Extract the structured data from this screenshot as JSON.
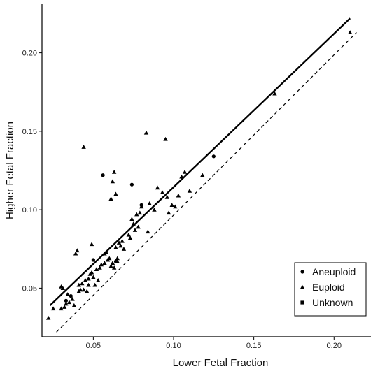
{
  "chart_data": {
    "type": "scatter",
    "xlabel": "Lower Fetal Fraction",
    "ylabel": "Higher Fetal Fraction",
    "xlim": [
      0.018,
      0.223
    ],
    "ylim": [
      0.019,
      0.231
    ],
    "xticks": [
      0.05,
      0.1,
      0.15,
      0.2
    ],
    "xtick_labels": [
      "0.05",
      "0.10",
      "0.15",
      "0.20"
    ],
    "yticks": [
      0.05,
      0.1,
      0.15,
      0.2
    ],
    "ytick_labels": [
      "0.05",
      "0.10",
      "0.15",
      "0.20"
    ],
    "grid": false,
    "legend_position": "bottom-right",
    "legend": [
      {
        "label": "Aneuploid",
        "marker": "circle"
      },
      {
        "label": "Euploid",
        "marker": "triangle"
      },
      {
        "label": "Unknown",
        "marker": "square"
      }
    ],
    "reference_lines": [
      {
        "style": "solid",
        "from": [
          0.023,
          0.039
        ],
        "to": [
          0.21,
          0.222
        ]
      },
      {
        "style": "dashed",
        "from": [
          0.027,
          0.022
        ],
        "to": [
          0.214,
          0.213
        ]
      }
    ],
    "series": [
      {
        "name": "Aneuploid",
        "marker": "circle",
        "points": [
          [
            0.056,
            0.122
          ],
          [
            0.074,
            0.116
          ],
          [
            0.08,
            0.103
          ],
          [
            0.125,
            0.134
          ],
          [
            0.05,
            0.068
          ],
          [
            0.036,
            0.045
          ],
          [
            0.064,
            0.067
          ],
          [
            0.033,
            0.042
          ]
        ]
      },
      {
        "name": "Euploid",
        "marker": "triangle",
        "points": [
          [
            0.022,
            0.031
          ],
          [
            0.025,
            0.037
          ],
          [
            0.03,
            0.051
          ],
          [
            0.031,
            0.05
          ],
          [
            0.03,
            0.037
          ],
          [
            0.032,
            0.038
          ],
          [
            0.033,
            0.04
          ],
          [
            0.034,
            0.046
          ],
          [
            0.035,
            0.041
          ],
          [
            0.037,
            0.043
          ],
          [
            0.038,
            0.039
          ],
          [
            0.039,
            0.072
          ],
          [
            0.04,
            0.074
          ],
          [
            0.041,
            0.052
          ],
          [
            0.041,
            0.048
          ],
          [
            0.042,
            0.049
          ],
          [
            0.043,
            0.053
          ],
          [
            0.044,
            0.14
          ],
          [
            0.044,
            0.049
          ],
          [
            0.045,
            0.055
          ],
          [
            0.046,
            0.048
          ],
          [
            0.047,
            0.056
          ],
          [
            0.047,
            0.052
          ],
          [
            0.048,
            0.059
          ],
          [
            0.049,
            0.078
          ],
          [
            0.049,
            0.06
          ],
          [
            0.05,
            0.057
          ],
          [
            0.051,
            0.052
          ],
          [
            0.052,
            0.062
          ],
          [
            0.053,
            0.055
          ],
          [
            0.054,
            0.063
          ],
          [
            0.055,
            0.065
          ],
          [
            0.057,
            0.072
          ],
          [
            0.057,
            0.066
          ],
          [
            0.058,
            0.073
          ],
          [
            0.059,
            0.068
          ],
          [
            0.06,
            0.069
          ],
          [
            0.061,
            0.107
          ],
          [
            0.061,
            0.064
          ],
          [
            0.062,
            0.118
          ],
          [
            0.062,
            0.066
          ],
          [
            0.063,
            0.124
          ],
          [
            0.063,
            0.063
          ],
          [
            0.064,
            0.11
          ],
          [
            0.064,
            0.076
          ],
          [
            0.065,
            0.067
          ],
          [
            0.065,
            0.069
          ],
          [
            0.066,
            0.079
          ],
          [
            0.067,
            0.077
          ],
          [
            0.068,
            0.08
          ],
          [
            0.069,
            0.075
          ],
          [
            0.072,
            0.084
          ],
          [
            0.073,
            0.082
          ],
          [
            0.074,
            0.094
          ],
          [
            0.075,
            0.091
          ],
          [
            0.076,
            0.087
          ],
          [
            0.077,
            0.097
          ],
          [
            0.078,
            0.089
          ],
          [
            0.079,
            0.098
          ],
          [
            0.08,
            0.102
          ],
          [
            0.083,
            0.149
          ],
          [
            0.084,
            0.086
          ],
          [
            0.085,
            0.104
          ],
          [
            0.088,
            0.1
          ],
          [
            0.09,
            0.114
          ],
          [
            0.093,
            0.111
          ],
          [
            0.095,
            0.145
          ],
          [
            0.096,
            0.108
          ],
          [
            0.097,
            0.098
          ],
          [
            0.099,
            0.103
          ],
          [
            0.101,
            0.102
          ],
          [
            0.103,
            0.109
          ],
          [
            0.105,
            0.121
          ],
          [
            0.107,
            0.124
          ],
          [
            0.11,
            0.112
          ],
          [
            0.118,
            0.122
          ],
          [
            0.163,
            0.174
          ],
          [
            0.21,
            0.213
          ]
        ]
      }
    ]
  }
}
